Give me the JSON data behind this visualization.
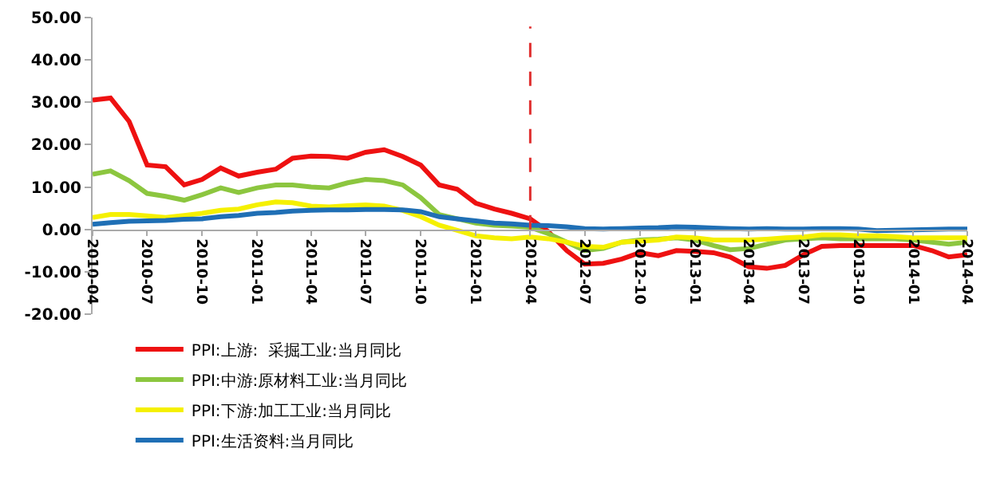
{
  "chart_data": {
    "type": "line",
    "x": [
      "2010-04",
      "2010-05",
      "2010-06",
      "2010-07",
      "2010-08",
      "2010-09",
      "2010-10",
      "2010-11",
      "2010-12",
      "2011-01",
      "2011-02",
      "2011-03",
      "2011-04",
      "2011-05",
      "2011-06",
      "2011-07",
      "2011-08",
      "2011-09",
      "2011-10",
      "2011-11",
      "2011-12",
      "2012-01",
      "2012-02",
      "2012-03",
      "2012-04",
      "2012-05",
      "2012-06",
      "2012-07",
      "2012-08",
      "2012-09",
      "2012-10",
      "2012-11",
      "2012-12",
      "2013-01",
      "2013-02",
      "2013-03",
      "2013-04",
      "2013-05",
      "2013-06",
      "2013-07",
      "2013-08",
      "2013-09",
      "2013-10",
      "2013-11",
      "2013-12",
      "2014-01",
      "2014-02",
      "2014-03",
      "2014-04"
    ],
    "series": [
      {
        "name": "PPI:上游:  采掘工业:当月同比",
        "color": "#ee1111",
        "values": [
          30.5,
          31,
          25.5,
          15.2,
          14.8,
          10.5,
          11.8,
          14.5,
          12.6,
          13.5,
          14.2,
          16.8,
          17.3,
          17.2,
          16.8,
          18.2,
          18.8,
          17.2,
          15.2,
          10.5,
          9.5,
          6.2,
          4.8,
          3.8,
          2.5,
          -0.5,
          -5,
          -8.2,
          -8,
          -7,
          -5.5,
          -6.2,
          -5,
          -5.2,
          -5.5,
          -6.5,
          -8.8,
          -9.2,
          -8.5,
          -6,
          -4,
          -3.8,
          -3.8,
          -3.8,
          -3.8,
          -3.8,
          -5,
          -6.5,
          -6
        ]
      },
      {
        "name": "PPI:中游:原材料工业:当月同比",
        "color": "#8cc63f",
        "values": [
          13,
          13.8,
          11.5,
          8.5,
          7.8,
          6.9,
          8.2,
          9.8,
          8.7,
          9.8,
          10.5,
          10.5,
          10,
          9.8,
          11,
          11.8,
          11.5,
          10.5,
          7.5,
          3.5,
          2.5,
          1.5,
          1.0,
          0.8,
          0.5,
          -1,
          -3,
          -5,
          -4.5,
          -3,
          -2.5,
          -2.3,
          -2,
          -2.5,
          -3.8,
          -4.8,
          -4.5,
          -3.5,
          -2.5,
          -2.2,
          -2,
          -2.2,
          -2.2,
          -2.2,
          -2.2,
          -2.5,
          -3,
          -3.5,
          -3
        ]
      },
      {
        "name": "PPI:下游:加工工业:当月同比",
        "color": "#f5f000",
        "values": [
          2.8,
          3.5,
          3.5,
          3.2,
          2.8,
          3.3,
          3.8,
          4.5,
          4.8,
          5.8,
          6.5,
          6.3,
          5.5,
          5.3,
          5.6,
          5.8,
          5.5,
          4.5,
          3.0,
          1.0,
          -0.2,
          -1.5,
          -2.0,
          -2.2,
          -1.8,
          -2.2,
          -3.0,
          -4.0,
          -4.2,
          -3.0,
          -2.8,
          -2.5,
          -1.8,
          -2,
          -2.5,
          -2.5,
          -2.5,
          -2.3,
          -2.0,
          -1.8,
          -1.3,
          -1.3,
          -1.5,
          -1.5,
          -1.7,
          -2,
          -2,
          -2,
          -2
        ]
      },
      {
        "name": "PPI:生活资料:当月同比",
        "color": "#1f6fb5",
        "values": [
          1.2,
          1.6,
          1.9,
          2.0,
          2.1,
          2.4,
          2.5,
          3.0,
          3.3,
          3.8,
          4.0,
          4.3,
          4.5,
          4.6,
          4.6,
          4.7,
          4.7,
          4.6,
          4.2,
          3.0,
          2.5,
          2.0,
          1.5,
          1.3,
          1.0,
          0.9,
          0.6,
          0.2,
          0.1,
          0.2,
          0.3,
          0.4,
          0.6,
          0.5,
          0.3,
          0.2,
          0.1,
          0.2,
          0.1,
          0.1,
          0.2,
          0.2,
          0.1,
          -0.3,
          -0.2,
          -0.1,
          0.0,
          0.1,
          0.1
        ]
      }
    ],
    "xlim": [
      "2010-04",
      "2014-04"
    ],
    "xticks": [
      "2010-04",
      "2010-07",
      "2010-10",
      "2011-01",
      "2011-04",
      "2011-07",
      "2011-10",
      "2012-01",
      "2012-04",
      "2012-07",
      "2012-10",
      "2013-01",
      "2013-04",
      "2013-07",
      "2013-10",
      "2014-01",
      "2014-04"
    ],
    "ylim": [
      -20,
      50
    ],
    "yticks": [
      {
        "value": -20,
        "label": "-20.00"
      },
      {
        "value": -10,
        "label": "-10.00"
      },
      {
        "value": 0,
        "label": "0.00"
      },
      {
        "value": 10,
        "label": "10.00"
      },
      {
        "value": 20,
        "label": "20.00"
      },
      {
        "value": 30,
        "label": "30.00"
      },
      {
        "value": 40,
        "label": "40.00"
      },
      {
        "value": 50,
        "label": "50.00"
      }
    ],
    "ref_lines": [
      {
        "axis": "x",
        "value": "2012-04",
        "color": "#e03030",
        "line_style": "dashed"
      }
    ],
    "legend": "bottom",
    "grid": false,
    "marker": "none",
    "line_style": "solid"
  }
}
